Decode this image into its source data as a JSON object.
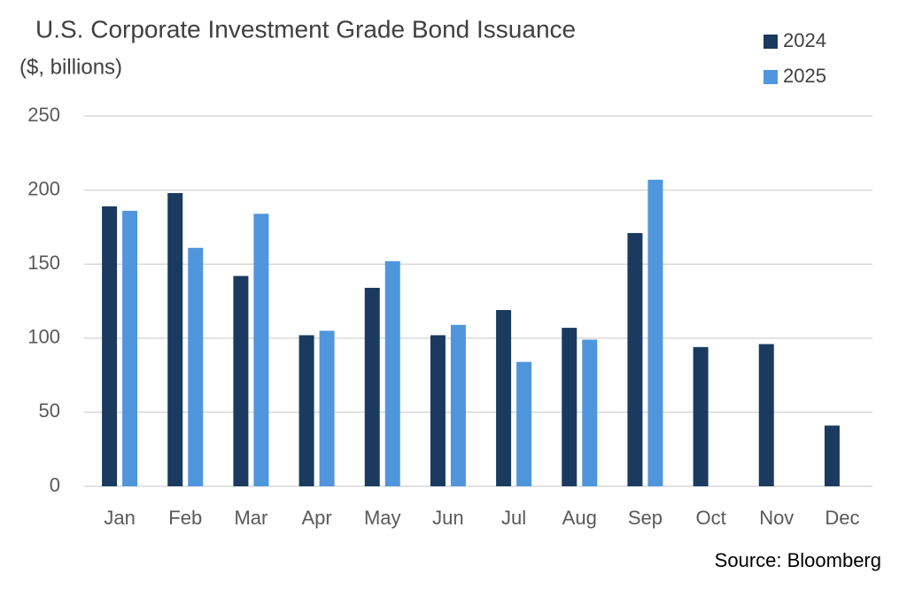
{
  "chart_data": {
    "type": "bar",
    "title": "U.S. Corporate Investment Grade Bond Issuance",
    "subtitle": "($, billions)",
    "source": "Source: Bloomberg",
    "categories": [
      "Jan",
      "Feb",
      "Mar",
      "Apr",
      "May",
      "Jun",
      "Jul",
      "Aug",
      "Sep",
      "Oct",
      "Nov",
      "Dec"
    ],
    "series": [
      {
        "name": "2024",
        "color": "#1a3a5f",
        "values": [
          189,
          198,
          142,
          102,
          134,
          102,
          119,
          107,
          171,
          94,
          96,
          41
        ]
      },
      {
        "name": "2025",
        "color": "#5096dc",
        "values": [
          186,
          161,
          184,
          105,
          152,
          109,
          84,
          99,
          207,
          null,
          null,
          null
        ]
      }
    ],
    "ylim": [
      0,
      250
    ],
    "yticks": [
      0,
      50,
      100,
      150,
      200,
      250
    ],
    "grid": true,
    "legend": "top-right"
  }
}
